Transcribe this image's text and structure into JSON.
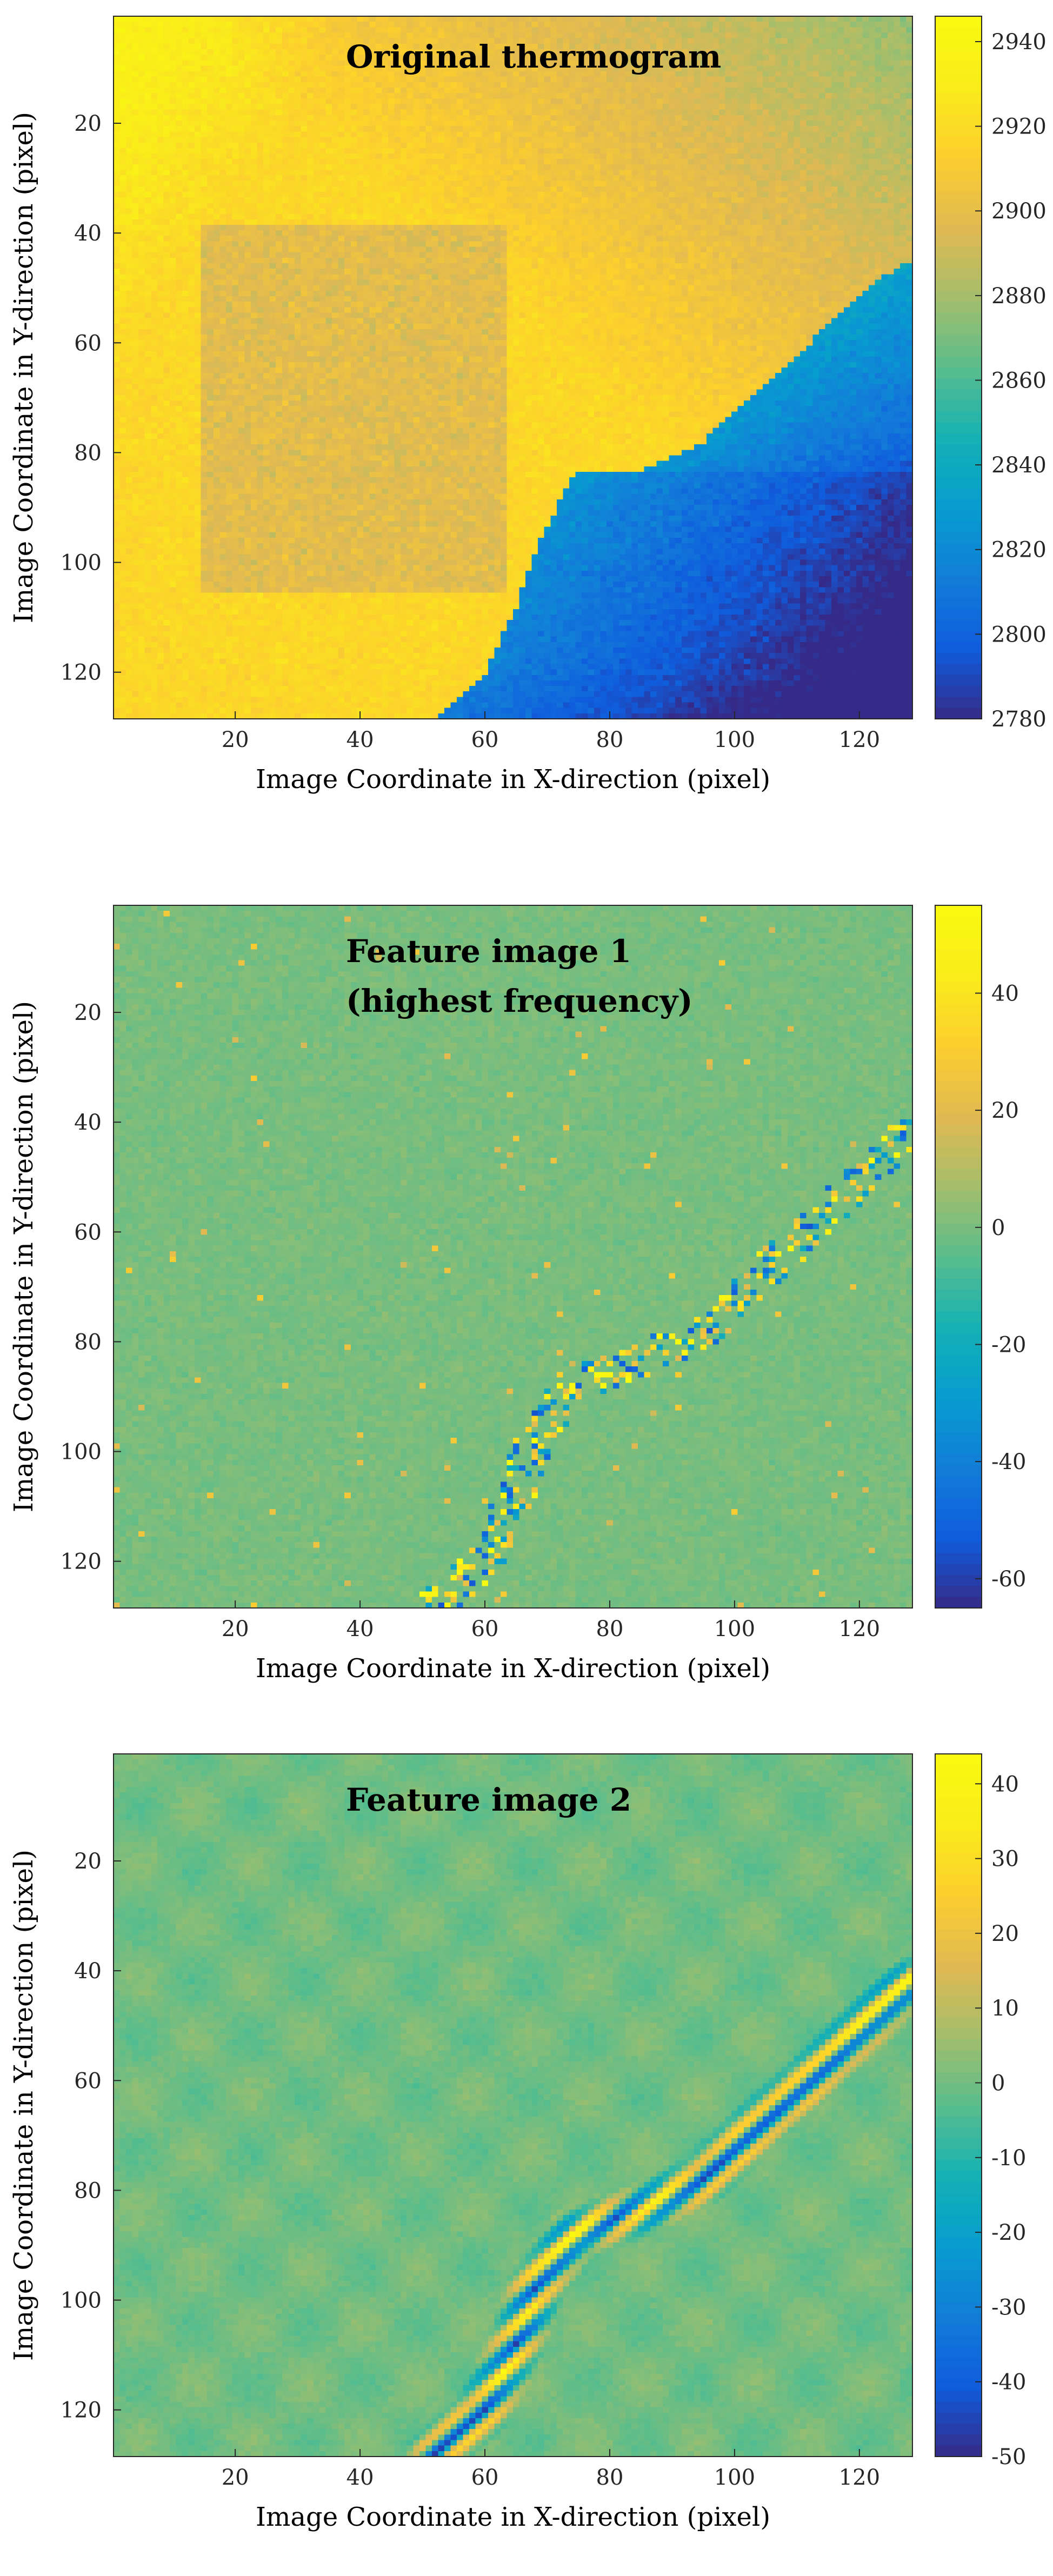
{
  "chart_data": [
    {
      "type": "heatmap",
      "title": "Original thermogram",
      "xlabel": "Image Coordinate in X-direction (pixel)",
      "ylabel": "Image Coordinate in Y-direction (pixel)",
      "xlim": [
        0.5,
        128.5
      ],
      "ylim": [
        0.5,
        128.5
      ],
      "y_reversed": true,
      "xticks": [
        20,
        40,
        60,
        80,
        100,
        120
      ],
      "yticks": [
        20,
        40,
        60,
        80,
        100,
        120
      ],
      "colorbar": {
        "min": 2780,
        "max": 2946,
        "ticks": [
          2780,
          2800,
          2820,
          2840,
          2860,
          2880,
          2900,
          2920,
          2940
        ]
      },
      "colormap": "parula",
      "regions": [
        {
          "name": "background",
          "value": 2918
        },
        {
          "name": "square-defect",
          "x": [
            15,
            63
          ],
          "y": [
            39,
            105
          ],
          "value": 2898
        },
        {
          "name": "cold-corner",
          "boundary": [
            [
              52,
              128
            ],
            [
              60,
              120
            ],
            [
              65,
              108
            ],
            [
              68,
              98
            ],
            [
              74,
              84
            ],
            [
              84,
              84
            ],
            [
              95,
              78
            ],
            [
              104,
              68
            ],
            [
              112,
              60
            ],
            [
              118,
              53
            ],
            [
              122,
              49
            ],
            [
              128,
              45
            ]
          ],
          "value_range": [
            2790,
            2830
          ]
        }
      ]
    },
    {
      "type": "heatmap",
      "title": "Feature image 1",
      "subtitle": "(highest frequency)",
      "xlabel": "Image Coordinate in X-direction (pixel)",
      "ylabel": "Image Coordinate in Y-direction (pixel)",
      "xlim": [
        0.5,
        128.5
      ],
      "ylim": [
        0.5,
        128.5
      ],
      "y_reversed": true,
      "xticks": [
        20,
        40,
        60,
        80,
        100,
        120
      ],
      "yticks": [
        20,
        40,
        60,
        80,
        100,
        120
      ],
      "colorbar": {
        "min": -65,
        "max": 55,
        "ticks": [
          -60,
          -40,
          -20,
          0,
          20,
          40
        ]
      },
      "colormap": "parula",
      "baseline": 0,
      "edge_path": [
        [
          52,
          128
        ],
        [
          60,
          120
        ],
        [
          65,
          108
        ],
        [
          68,
          98
        ],
        [
          74,
          88
        ],
        [
          84,
          84
        ],
        [
          95,
          78
        ],
        [
          104,
          68
        ],
        [
          112,
          60
        ],
        [
          118,
          53
        ],
        [
          128,
          42
        ]
      ]
    },
    {
      "type": "heatmap",
      "title": "Feature image 2",
      "xlabel": "Image Coordinate in X-direction (pixel)",
      "ylabel": "Image Coordinate in Y-direction (pixel)",
      "xlim": [
        0.5,
        128.5
      ],
      "ylim": [
        0.5,
        128.5
      ],
      "y_reversed": true,
      "xticks": [
        20,
        40,
        60,
        80,
        100,
        120
      ],
      "yticks": [
        20,
        40,
        60,
        80,
        100,
        120
      ],
      "colorbar": {
        "min": -50,
        "max": 44,
        "ticks": [
          -50,
          -40,
          -30,
          -20,
          -10,
          0,
          10,
          20,
          30,
          40
        ]
      },
      "colormap": "parula",
      "baseline": 0,
      "edge_path": [
        [
          52,
          128
        ],
        [
          60,
          120
        ],
        [
          65,
          108
        ],
        [
          68,
          98
        ],
        [
          74,
          88
        ],
        [
          84,
          84
        ],
        [
          95,
          78
        ],
        [
          104,
          68
        ],
        [
          112,
          60
        ],
        [
          118,
          53
        ],
        [
          128,
          42
        ]
      ]
    }
  ]
}
